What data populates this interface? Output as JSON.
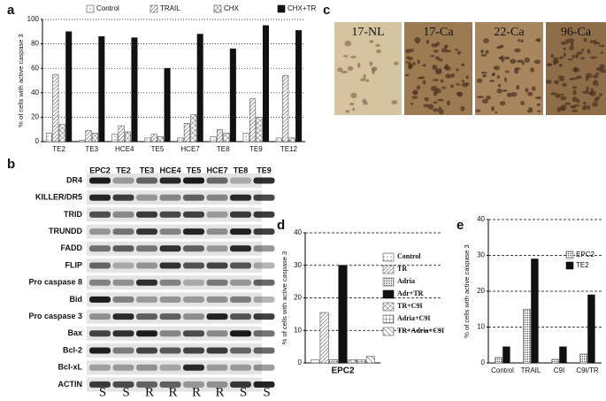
{
  "panels": [
    "a",
    "b",
    "c",
    "d",
    "e"
  ],
  "blot": {
    "lanes": [
      "EPC2",
      "TE2",
      "TE3",
      "HCE4",
      "TE5",
      "HCE7",
      "TE8",
      "TE9"
    ],
    "rows": [
      "DR4",
      "KILLER/DR5",
      "TRID",
      "TRUNDD",
      "FADD",
      "FLIP",
      "Pro caspase 8",
      "Bid",
      "Pro caspase 3",
      "Bax",
      "Bcl-2",
      "Bcl-xL",
      "ACTIN"
    ],
    "status": [
      "S",
      "S",
      "R",
      "R",
      "R",
      "R",
      "S",
      "S"
    ]
  },
  "histology": [
    "17-NL",
    "17-Ca",
    "22-Ca",
    "96-Ca"
  ],
  "chart_data": [
    {
      "type": "bar",
      "y_label": "% of cells with active caspase 3",
      "categories": [
        "TE2",
        "TE3",
        "HCE4",
        "TE5",
        "HCE7",
        "TE8",
        "TE9",
        "TE12"
      ],
      "series": [
        {
          "name": "Control",
          "color": "#555555",
          "values": [
            7,
            1,
            6,
            3,
            3,
            4,
            7,
            3
          ]
        },
        {
          "name": "TRAIL",
          "color": "#555555",
          "values": [
            55,
            9,
            13,
            6,
            15,
            10,
            35,
            54
          ]
        },
        {
          "name": "CHX",
          "color": "#555555",
          "values": [
            14,
            7,
            8,
            4,
            22,
            7,
            20,
            3
          ]
        },
        {
          "name": "CHX+TR",
          "color": "#111111",
          "values": [
            90,
            86,
            85,
            60,
            88,
            76,
            95,
            91
          ]
        }
      ],
      "ylim": [
        0,
        100
      ],
      "yticks": [
        0,
        20,
        40,
        60,
        80,
        100
      ],
      "grid": true,
      "legend": "top"
    },
    {
      "type": "bar",
      "y_label": "% of cells with active caspase 3",
      "categories": [
        "EPC2"
      ],
      "series": [
        {
          "name": "Control",
          "color": "#555555",
          "values": [
            1
          ]
        },
        {
          "name": "TR",
          "color": "#555555",
          "values": [
            15.5
          ]
        },
        {
          "name": "Adria",
          "color": "#555555",
          "values": [
            1
          ]
        },
        {
          "name": "Adr+TR",
          "color": "#111111",
          "values": [
            30
          ]
        },
        {
          "name": "TR+C9I",
          "color": "#555555",
          "values": [
            1
          ]
        },
        {
          "name": "Adria+C9I",
          "color": "#555555",
          "values": [
            1
          ]
        },
        {
          "name": "TR+Adria+C9I",
          "color": "#555555",
          "values": [
            2
          ]
        }
      ],
      "ylim": [
        0,
        40
      ],
      "yticks": [
        0,
        10,
        20,
        30,
        40
      ],
      "grid": true,
      "legend": "right"
    },
    {
      "type": "bar",
      "y_label": "% of cells with active caspase 3",
      "categories": [
        "Control",
        "TRAIL",
        "C9I",
        "C9I/TR"
      ],
      "series": [
        {
          "name": "EPC2",
          "color": "#555555",
          "values": [
            1.5,
            15,
            1,
            2.5
          ]
        },
        {
          "name": "TE2",
          "color": "#111111",
          "values": [
            4.5,
            29,
            4.5,
            19
          ]
        }
      ],
      "ylim": [
        0,
        40
      ],
      "yticks": [
        0,
        10,
        20,
        30,
        40
      ],
      "grid": true,
      "legend": "upper right"
    }
  ]
}
